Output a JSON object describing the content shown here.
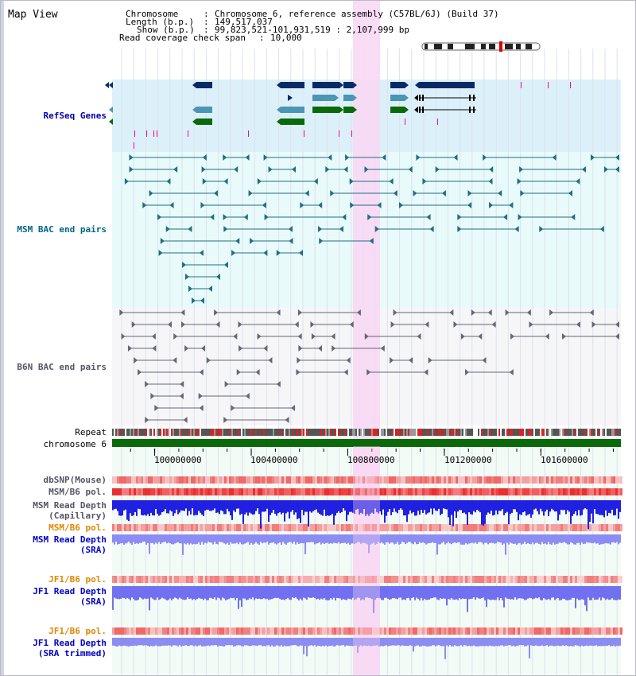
{
  "title": "Map View",
  "header": {
    "chromosome_key": "Chromosome",
    "chromosome_val": "Chromosome 6, reference assembly (C57BL/6J) (Build 37)",
    "length_key": "Length (b.p.)",
    "length_val": "149,517,037",
    "show_key": "Show (b.p.)",
    "show_val": "99,823,521-101,931,519 : 2,107,999 bp",
    "coverage_key": "Read coverage check span",
    "coverage_val": "10,000"
  },
  "tracks": {
    "refseq": "RefSeq Genes",
    "msm_bac": "MSM BAC end pairs",
    "b6n_bac": "B6N BAC end pairs",
    "repeat": "Repeat",
    "chromosome": "chromosome 6",
    "dbsnp": "dbSNP(Mouse)",
    "msm_b6_pol_1": "MSM/B6 pol.",
    "msm_depth_cap_1": "MSM Read Depth",
    "msm_depth_cap_2": "(Capillary)",
    "msm_b6_pol_2": "MSM/B6 pol.",
    "msm_depth_sra_1": "MSM Read Depth",
    "msm_depth_sra_2": "(SRA)",
    "jf1_b6_pol_1": "JF1/B6 pol.",
    "jf1_depth_sra_1": "JF1 Read Depth",
    "jf1_depth_sra_2": "(SRA)",
    "jf1_b6_pol_2": "JF1/B6 pol.",
    "jf1_depth_trim_1": "JF1 Read Depth",
    "jf1_depth_trim_2": "(SRA trimmed)"
  },
  "axis": {
    "range_bp": [
      99823521,
      101931519
    ],
    "ticks": [
      "100000000",
      "100400000",
      "100800000",
      "101200000",
      "101600000"
    ]
  },
  "colors": {
    "refseq_label": "#0000aa",
    "msm_label": "#006688",
    "b6n_label": "#555566",
    "pol_label": "#dd8800",
    "depth_label": "#0000cc",
    "refseq_bg": "#dcf0fa",
    "msm_bg": "#e8fafa",
    "gray_bg": "#f6f6f8",
    "highlight": "#f8d8f4",
    "gene_navy": "#0a2a66",
    "gene_teal": "#4b95b5",
    "gene_green": "#0a6a0a",
    "chromosome_bar": "#0a6a0a"
  },
  "icons": [
    "chromosome-ideogram-icon"
  ]
}
